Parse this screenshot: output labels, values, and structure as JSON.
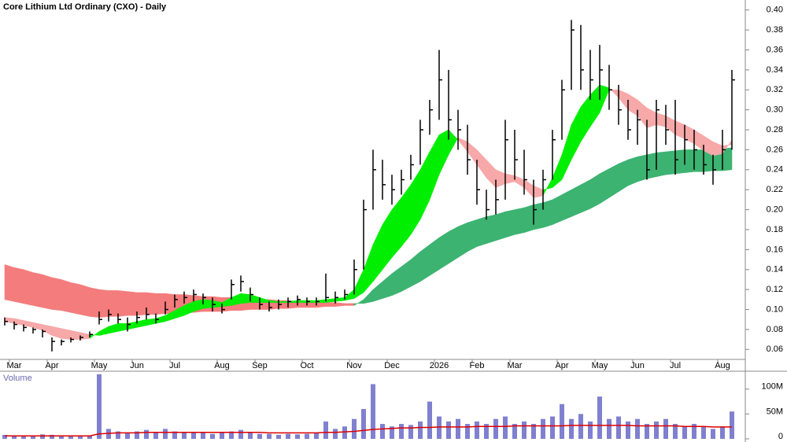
{
  "chart_data": {
    "type": "ohlc",
    "title": "Core Lithium Ltd Ordinary (CXO) - Daily",
    "categories": [
      null,
      "Mar",
      null,
      null,
      null,
      "Apr",
      null,
      null,
      null,
      null,
      "May",
      null,
      null,
      null,
      "Jun",
      null,
      null,
      null,
      "Jul",
      null,
      null,
      null,
      null,
      "Aug",
      null,
      null,
      null,
      "Sep",
      null,
      null,
      null,
      null,
      "Oct",
      null,
      null,
      null,
      null,
      "Nov",
      null,
      null,
      null,
      "Dec",
      null,
      null,
      null,
      null,
      "2026",
      null,
      null,
      null,
      "Feb",
      null,
      null,
      null,
      "Mar",
      null,
      null,
      null,
      null,
      "Apr",
      null,
      null,
      null,
      "May",
      null,
      null,
      null,
      "Jun",
      null,
      null,
      null,
      "Jul",
      null,
      null,
      null,
      null,
      "Aug",
      null
    ],
    "high": [
      0.092,
      0.088,
      0.085,
      0.082,
      0.08,
      0.072,
      0.07,
      0.072,
      0.074,
      0.078,
      0.098,
      0.1,
      0.096,
      0.092,
      0.098,
      0.102,
      0.096,
      0.108,
      0.115,
      0.118,
      0.12,
      0.116,
      0.112,
      0.106,
      0.13,
      0.134,
      0.122,
      0.112,
      0.108,
      0.11,
      0.112,
      0.114,
      0.112,
      0.112,
      0.136,
      0.118,
      0.12,
      0.15,
      0.21,
      0.26,
      0.25,
      0.235,
      0.24,
      0.255,
      0.29,
      0.31,
      0.36,
      0.34,
      0.3,
      0.285,
      0.25,
      0.22,
      0.23,
      0.29,
      0.28,
      0.26,
      0.23,
      0.24,
      0.28,
      0.33,
      0.39,
      0.385,
      0.36,
      0.365,
      0.345,
      0.325,
      0.31,
      0.3,
      0.29,
      0.31,
      0.305,
      0.31,
      0.285,
      0.28,
      0.265,
      0.255,
      0.28,
      0.34
    ],
    "low": [
      0.084,
      0.08,
      0.078,
      0.076,
      0.072,
      0.058,
      0.064,
      0.067,
      0.069,
      0.072,
      0.085,
      0.088,
      0.086,
      0.078,
      0.086,
      0.09,
      0.086,
      0.095,
      0.102,
      0.106,
      0.108,
      0.105,
      0.098,
      0.096,
      0.11,
      0.118,
      0.108,
      0.1,
      0.098,
      0.1,
      0.102,
      0.104,
      0.104,
      0.104,
      0.108,
      0.106,
      0.11,
      0.115,
      0.14,
      0.2,
      0.21,
      0.205,
      0.215,
      0.23,
      0.245,
      0.275,
      0.29,
      0.27,
      0.26,
      0.235,
      0.205,
      0.19,
      0.195,
      0.21,
      0.23,
      0.215,
      0.185,
      0.2,
      0.23,
      0.27,
      0.32,
      0.32,
      0.31,
      0.31,
      0.3,
      0.285,
      0.27,
      0.265,
      0.23,
      0.24,
      0.265,
      0.235,
      0.245,
      0.24,
      0.235,
      0.225,
      0.24,
      0.26
    ],
    "close": [
      0.088,
      0.085,
      0.082,
      0.08,
      0.078,
      0.068,
      0.068,
      0.07,
      0.072,
      0.075,
      0.09,
      0.095,
      0.09,
      0.085,
      0.092,
      0.095,
      0.09,
      0.1,
      0.11,
      0.112,
      0.115,
      0.112,
      0.105,
      0.1,
      0.125,
      0.128,
      0.115,
      0.105,
      0.102,
      0.105,
      0.108,
      0.11,
      0.108,
      0.108,
      0.112,
      0.112,
      0.115,
      0.14,
      0.2,
      0.24,
      0.225,
      0.22,
      0.23,
      0.245,
      0.28,
      0.3,
      0.33,
      0.29,
      0.28,
      0.25,
      0.22,
      0.2,
      0.21,
      0.27,
      0.25,
      0.23,
      0.2,
      0.23,
      0.27,
      0.32,
      0.38,
      0.34,
      0.33,
      0.34,
      0.32,
      0.3,
      0.28,
      0.29,
      0.24,
      0.3,
      0.28,
      0.25,
      0.27,
      0.26,
      0.245,
      0.24,
      0.26,
      0.33
    ],
    "color": "#000000",
    "ylim": [
      0.05,
      0.41
    ],
    "yticks": [
      {
        "value": 0.06,
        "label": "0.06"
      },
      {
        "value": 0.08,
        "label": "0.08"
      },
      {
        "value": 0.1,
        "label": "0.10"
      },
      {
        "value": 0.12,
        "label": "0.12"
      },
      {
        "value": 0.14,
        "label": "0.14"
      },
      {
        "value": 0.16,
        "label": "0.16"
      },
      {
        "value": 0.18,
        "label": "0.18"
      },
      {
        "value": 0.2,
        "label": "0.20"
      },
      {
        "value": 0.22,
        "label": "0.22"
      },
      {
        "value": 0.24,
        "label": "0.24"
      },
      {
        "value": 0.26,
        "label": "0.26"
      },
      {
        "value": 0.28,
        "label": "0.28"
      },
      {
        "value": 0.3,
        "label": "0.30"
      },
      {
        "value": 0.32,
        "label": "0.32"
      },
      {
        "value": 0.34,
        "label": "0.34"
      },
      {
        "value": 0.36,
        "label": "0.36"
      },
      {
        "value": 0.38,
        "label": "0.38"
      },
      {
        "value": 0.4,
        "label": "0.40"
      }
    ],
    "ribbons": [
      {
        "up_color": "#3cb371",
        "down_color": "#f47c7c",
        "fast": [
          0.11,
          0.108,
          0.106,
          0.104,
          0.102,
          0.1,
          0.099,
          0.097,
          0.095,
          0.093,
          0.092,
          0.093,
          0.093,
          0.094,
          0.094,
          0.095,
          0.095,
          0.096,
          0.096,
          0.097,
          0.097,
          0.098,
          0.098,
          0.098,
          0.099,
          0.099,
          0.1,
          0.1,
          0.1,
          0.101,
          0.101,
          0.102,
          0.102,
          0.102,
          0.103,
          0.103,
          0.104,
          0.104,
          0.11,
          0.12,
          0.128,
          0.136,
          0.143,
          0.15,
          0.158,
          0.165,
          0.172,
          0.178,
          0.183,
          0.187,
          0.19,
          0.193,
          0.195,
          0.198,
          0.2,
          0.202,
          0.205,
          0.207,
          0.21,
          0.215,
          0.22,
          0.225,
          0.23,
          0.236,
          0.241,
          0.246,
          0.25,
          0.253,
          0.255,
          0.257,
          0.258,
          0.259,
          0.26,
          0.26,
          0.26,
          0.261,
          0.261,
          0.262
        ],
        "slow": [
          0.145,
          0.142,
          0.14,
          0.137,
          0.135,
          0.132,
          0.13,
          0.127,
          0.125,
          0.122,
          0.12,
          0.119,
          0.119,
          0.118,
          0.117,
          0.117,
          0.116,
          0.116,
          0.115,
          0.115,
          0.114,
          0.113,
          0.113,
          0.112,
          0.112,
          0.111,
          0.111,
          0.11,
          0.11,
          0.109,
          0.109,
          0.108,
          0.108,
          0.107,
          0.107,
          0.107,
          0.106,
          0.106,
          0.106,
          0.108,
          0.111,
          0.114,
          0.118,
          0.123,
          0.128,
          0.134,
          0.14,
          0.146,
          0.152,
          0.158,
          0.163,
          0.166,
          0.169,
          0.172,
          0.175,
          0.177,
          0.18,
          0.182,
          0.185,
          0.189,
          0.193,
          0.197,
          0.201,
          0.206,
          0.212,
          0.218,
          0.224,
          0.228,
          0.231,
          0.233,
          0.235,
          0.236,
          0.237,
          0.238,
          0.238,
          0.239,
          0.239,
          0.24
        ]
      },
      {
        "up_color": "#00ee00",
        "down_color": "#f7a8a8",
        "fast": [
          0.088,
          0.086,
          0.084,
          0.082,
          0.079,
          0.074,
          0.071,
          0.07,
          0.07,
          0.071,
          0.078,
          0.083,
          0.086,
          0.086,
          0.088,
          0.09,
          0.091,
          0.094,
          0.099,
          0.104,
          0.108,
          0.11,
          0.109,
          0.107,
          0.112,
          0.116,
          0.115,
          0.112,
          0.109,
          0.108,
          0.108,
          0.109,
          0.109,
          0.109,
          0.11,
          0.111,
          0.112,
          0.12,
          0.14,
          0.165,
          0.185,
          0.2,
          0.212,
          0.225,
          0.24,
          0.258,
          0.275,
          0.28,
          0.27,
          0.258,
          0.245,
          0.232,
          0.222,
          0.226,
          0.228,
          0.222,
          0.212,
          0.214,
          0.232,
          0.255,
          0.285,
          0.303,
          0.315,
          0.325,
          0.322,
          0.312,
          0.3,
          0.294,
          0.282,
          0.285,
          0.283,
          0.275,
          0.271,
          0.266,
          0.259,
          0.254,
          0.256,
          0.27
        ],
        "slow": [
          0.092,
          0.091,
          0.089,
          0.087,
          0.085,
          0.083,
          0.081,
          0.079,
          0.077,
          0.075,
          0.074,
          0.076,
          0.078,
          0.08,
          0.082,
          0.084,
          0.086,
          0.088,
          0.091,
          0.094,
          0.098,
          0.101,
          0.102,
          0.103,
          0.104,
          0.106,
          0.107,
          0.107,
          0.107,
          0.107,
          0.107,
          0.107,
          0.107,
          0.107,
          0.107,
          0.108,
          0.109,
          0.111,
          0.117,
          0.128,
          0.14,
          0.152,
          0.163,
          0.175,
          0.19,
          0.21,
          0.235,
          0.255,
          0.272,
          0.268,
          0.26,
          0.25,
          0.24,
          0.236,
          0.234,
          0.23,
          0.224,
          0.22,
          0.222,
          0.23,
          0.25,
          0.268,
          0.283,
          0.297,
          0.32,
          0.32,
          0.316,
          0.31,
          0.302,
          0.297,
          0.294,
          0.289,
          0.285,
          0.28,
          0.274,
          0.268,
          0.264,
          0.265
        ]
      }
    ],
    "volume": {
      "label": "Volume",
      "color": "#8080d0",
      "values": [
        8,
        7,
        6,
        7,
        9,
        8,
        6,
        7,
        6,
        7,
        130,
        20,
        15,
        12,
        15,
        18,
        14,
        20,
        15,
        12,
        14,
        12,
        10,
        12,
        15,
        18,
        12,
        10,
        10,
        8,
        10,
        9,
        10,
        12,
        35,
        20,
        25,
        40,
        60,
        110,
        30,
        25,
        30,
        28,
        35,
        75,
        45,
        35,
        40,
        30,
        35,
        30,
        40,
        45,
        30,
        35,
        30,
        40,
        45,
        70,
        40,
        50,
        35,
        85,
        40,
        45,
        35,
        40,
        30,
        35,
        40,
        30,
        25,
        30,
        25,
        20,
        25,
        55
      ],
      "ma": {
        "color": "#dd0000",
        "values": [
          6,
          6,
          6,
          6,
          6,
          6,
          6,
          6,
          6,
          6,
          10,
          11,
          12,
          12,
          12,
          13,
          13,
          13,
          13,
          13,
          13,
          13,
          13,
          13,
          13,
          13,
          13,
          13,
          12,
          12,
          12,
          12,
          12,
          12,
          13,
          13,
          14,
          15,
          17,
          19,
          20,
          21,
          22,
          22,
          23,
          23,
          24,
          24,
          24,
          24,
          25,
          25,
          25,
          25,
          26,
          26,
          26,
          26,
          26,
          26,
          27,
          27,
          27,
          27,
          27,
          27,
          27,
          26,
          26,
          26,
          26,
          26,
          25,
          25,
          25,
          24,
          24,
          24
        ]
      },
      "ylim": [
        0,
        136
      ],
      "yticks": [
        0,
        {
          "value": 50,
          "label": "50M"
        },
        {
          "value": 100,
          "label": "100M"
        }
      ]
    }
  }
}
